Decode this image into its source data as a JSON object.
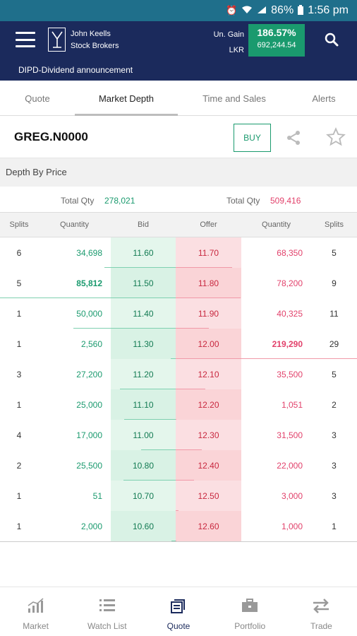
{
  "status_bar": {
    "battery": "86%",
    "time": "1:56 pm"
  },
  "header": {
    "brand_line1": "John Keells",
    "brand_line2": "Stock Brokers",
    "gain_label": "Un. Gain",
    "currency_label": "LKR",
    "gain_pct": "186.57%",
    "gain_value": "692,244.54",
    "announcement": "DIPD-Dividend announcement",
    "colors": {
      "bar": "#1b2a5c",
      "gain": "#1a9a6e"
    }
  },
  "tabs": [
    {
      "label": "Quote"
    },
    {
      "label": "Market Depth"
    },
    {
      "label": "Time and Sales"
    },
    {
      "label": "Alerts"
    }
  ],
  "symbol": {
    "code": "GREG.N0000",
    "buy_label": "BUY"
  },
  "depth": {
    "title": "Depth By Price",
    "bid_total_label": "Total Qty",
    "bid_total": "278,021",
    "offer_total_label": "Total Qty",
    "offer_total": "509,416",
    "columns": [
      "Splits",
      "Quantity",
      "Bid",
      "Offer",
      "Quantity",
      "Splits"
    ],
    "rows": [
      {
        "bid_splits": "6",
        "bid_qty": "34,698",
        "bid": "11.60",
        "offer": "11.70",
        "offer_qty": "68,350",
        "offer_splits": "5"
      },
      {
        "bid_splits": "5",
        "bid_qty": "85,812",
        "bid": "11.50",
        "offer": "11.80",
        "offer_qty": "78,200",
        "offer_splits": "9"
      },
      {
        "bid_splits": "1",
        "bid_qty": "50,000",
        "bid": "11.40",
        "offer": "11.90",
        "offer_qty": "40,325",
        "offer_splits": "11"
      },
      {
        "bid_splits": "1",
        "bid_qty": "2,560",
        "bid": "11.30",
        "offer": "12.00",
        "offer_qty": "219,290",
        "offer_splits": "29"
      },
      {
        "bid_splits": "3",
        "bid_qty": "27,200",
        "bid": "11.20",
        "offer": "12.10",
        "offer_qty": "35,500",
        "offer_splits": "5"
      },
      {
        "bid_splits": "1",
        "bid_qty": "25,000",
        "bid": "11.10",
        "offer": "12.20",
        "offer_qty": "1,051",
        "offer_splits": "2"
      },
      {
        "bid_splits": "4",
        "bid_qty": "17,000",
        "bid": "11.00",
        "offer": "12.30",
        "offer_qty": "31,500",
        "offer_splits": "3"
      },
      {
        "bid_splits": "2",
        "bid_qty": "25,500",
        "bid": "10.80",
        "offer": "12.40",
        "offer_qty": "22,000",
        "offer_splits": "3"
      },
      {
        "bid_splits": "1",
        "bid_qty": "51",
        "bid": "10.70",
        "offer": "12.50",
        "offer_qty": "3,000",
        "offer_splits": "3"
      },
      {
        "bid_splits": "1",
        "bid_qty": "2,000",
        "bid": "10.60",
        "offer": "12.60",
        "offer_qty": "1,000",
        "offer_splits": "1"
      }
    ]
  },
  "bottom_nav": [
    {
      "label": "Market",
      "icon": "chart-icon"
    },
    {
      "label": "Watch List",
      "icon": "list-icon"
    },
    {
      "label": "Quote",
      "icon": "quote-icon"
    },
    {
      "label": "Portfolio",
      "icon": "briefcase-icon"
    },
    {
      "label": "Trade",
      "icon": "swap-arrows-icon"
    }
  ]
}
